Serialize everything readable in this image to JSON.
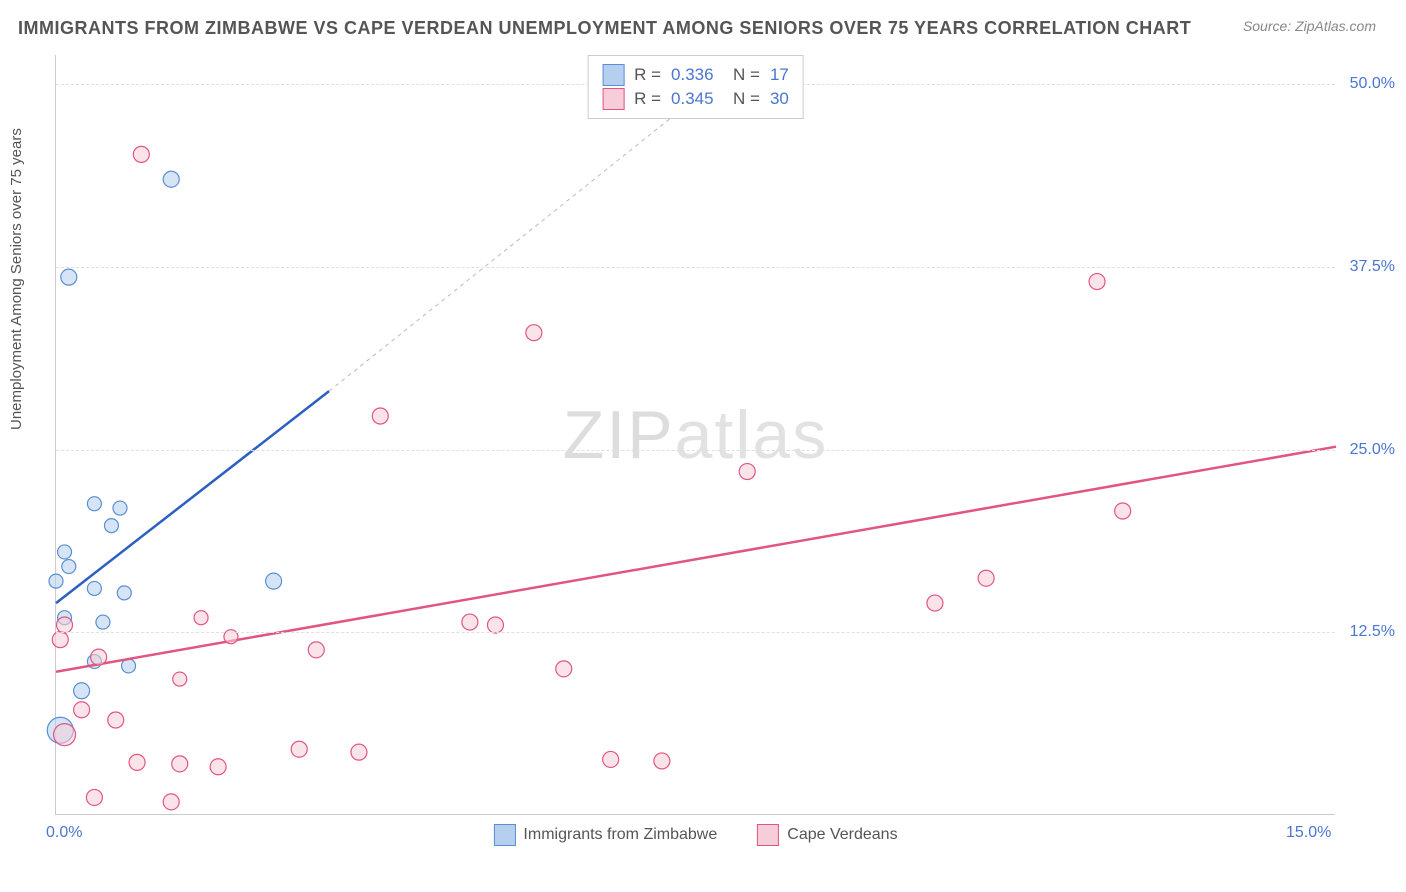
{
  "title": "IMMIGRANTS FROM ZIMBABWE VS CAPE VERDEAN UNEMPLOYMENT AMONG SENIORS OVER 75 YEARS CORRELATION CHART",
  "source": "Source: ZipAtlas.com",
  "ylabel": "Unemployment Among Seniors over 75 years",
  "watermark_a": "ZIP",
  "watermark_b": "atlas",
  "chart": {
    "type": "scatter",
    "xlim": [
      0,
      15
    ],
    "ylim": [
      0,
      52
    ],
    "yticks": [
      {
        "v": 12.5,
        "label": "12.5%"
      },
      {
        "v": 25.0,
        "label": "25.0%"
      },
      {
        "v": 37.5,
        "label": "37.5%"
      },
      {
        "v": 50.0,
        "label": "50.0%"
      }
    ],
    "xticks": [
      {
        "v": 0,
        "label": "0.0%"
      },
      {
        "v": 15,
        "label": "15.0%"
      }
    ],
    "grid_color": "#e0e0e0",
    "background_color": "#ffffff",
    "series": [
      {
        "name": "Immigrants from Zimbabwe",
        "color_fill": "#b4d0ee",
        "color_stroke": "#5b8ed4",
        "line_color": "#2b5fc1",
        "r_value": "0.336",
        "n_value": "17",
        "regression": {
          "x1": 0,
          "y1": 14.5,
          "x2": 3.2,
          "y2": 29.0
        },
        "regression_ext": {
          "x1": 3.2,
          "y1": 29.0,
          "x2": 7.7,
          "y2": 50.0
        },
        "points": [
          {
            "x": 0.15,
            "y": 36.8,
            "r": 8
          },
          {
            "x": 1.35,
            "y": 43.5,
            "r": 8
          },
          {
            "x": 0.45,
            "y": 21.3,
            "r": 7
          },
          {
            "x": 0.75,
            "y": 21.0,
            "r": 7
          },
          {
            "x": 0.65,
            "y": 19.8,
            "r": 7
          },
          {
            "x": 0.1,
            "y": 18.0,
            "r": 7
          },
          {
            "x": 0.15,
            "y": 17.0,
            "r": 7
          },
          {
            "x": 0.0,
            "y": 16.0,
            "r": 7
          },
          {
            "x": 0.45,
            "y": 15.5,
            "r": 7
          },
          {
            "x": 0.8,
            "y": 15.2,
            "r": 7
          },
          {
            "x": 0.1,
            "y": 13.5,
            "r": 7
          },
          {
            "x": 0.55,
            "y": 13.2,
            "r": 7
          },
          {
            "x": 0.45,
            "y": 10.5,
            "r": 7
          },
          {
            "x": 0.85,
            "y": 10.2,
            "r": 7
          },
          {
            "x": 2.55,
            "y": 16.0,
            "r": 8
          },
          {
            "x": 0.3,
            "y": 8.5,
            "r": 8
          },
          {
            "x": 0.05,
            "y": 5.8,
            "r": 13
          }
        ]
      },
      {
        "name": "Cape Verdeans",
        "color_fill": "#f6cdd9",
        "color_stroke": "#e2557f",
        "line_color": "#e2557f",
        "r_value": "0.345",
        "n_value": "30",
        "regression": {
          "x1": 0,
          "y1": 9.8,
          "x2": 15,
          "y2": 25.2
        },
        "points": [
          {
            "x": 1.0,
            "y": 45.2,
            "r": 8
          },
          {
            "x": 5.6,
            "y": 33.0,
            "r": 8
          },
          {
            "x": 12.2,
            "y": 36.5,
            "r": 8
          },
          {
            "x": 3.8,
            "y": 27.3,
            "r": 8
          },
          {
            "x": 8.1,
            "y": 23.5,
            "r": 8
          },
          {
            "x": 12.5,
            "y": 20.8,
            "r": 8
          },
          {
            "x": 10.9,
            "y": 16.2,
            "r": 8
          },
          {
            "x": 10.3,
            "y": 14.5,
            "r": 8
          },
          {
            "x": 4.85,
            "y": 13.2,
            "r": 8
          },
          {
            "x": 5.15,
            "y": 13.0,
            "r": 8
          },
          {
            "x": 3.05,
            "y": 11.3,
            "r": 8
          },
          {
            "x": 5.95,
            "y": 10.0,
            "r": 8
          },
          {
            "x": 0.05,
            "y": 12.0,
            "r": 8
          },
          {
            "x": 0.1,
            "y": 13.0,
            "r": 8
          },
          {
            "x": 0.5,
            "y": 10.8,
            "r": 8
          },
          {
            "x": 1.7,
            "y": 13.5,
            "r": 7
          },
          {
            "x": 2.05,
            "y": 12.2,
            "r": 7
          },
          {
            "x": 1.45,
            "y": 9.3,
            "r": 7
          },
          {
            "x": 0.3,
            "y": 7.2,
            "r": 8
          },
          {
            "x": 0.7,
            "y": 6.5,
            "r": 8
          },
          {
            "x": 2.85,
            "y": 4.5,
            "r": 8
          },
          {
            "x": 3.55,
            "y": 4.3,
            "r": 8
          },
          {
            "x": 6.5,
            "y": 3.8,
            "r": 8
          },
          {
            "x": 7.1,
            "y": 3.7,
            "r": 8
          },
          {
            "x": 0.95,
            "y": 3.6,
            "r": 8
          },
          {
            "x": 1.45,
            "y": 3.5,
            "r": 8
          },
          {
            "x": 1.9,
            "y": 3.3,
            "r": 8
          },
          {
            "x": 0.45,
            "y": 1.2,
            "r": 8
          },
          {
            "x": 1.35,
            "y": 0.9,
            "r": 8
          },
          {
            "x": 0.1,
            "y": 5.5,
            "r": 11
          }
        ]
      }
    ]
  }
}
